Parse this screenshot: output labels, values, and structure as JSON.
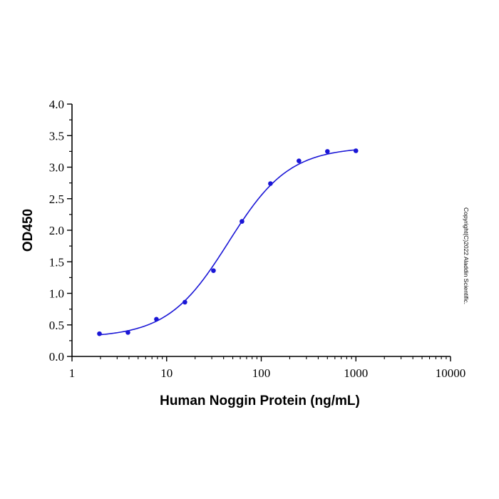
{
  "chart_data": {
    "type": "scatter",
    "x_scale": "log",
    "xlabel": "Human Noggin Protein (ng/mL)",
    "ylabel": "OD450",
    "xlim": [
      1,
      10000
    ],
    "ylim": [
      0,
      4.0
    ],
    "x_ticks": [
      "1",
      "10",
      "100",
      "1000",
      "10000"
    ],
    "y_ticks": [
      "0.0",
      "0.5",
      "1.0",
      "1.5",
      "2.0",
      "2.5",
      "3.0",
      "3.5",
      "4.0"
    ],
    "grid": false,
    "legend": "none",
    "series": [
      {
        "x": [
          1.95,
          3.9,
          7.8,
          15.6,
          31.25,
          62.5,
          125,
          250,
          500,
          1000
        ],
        "y": [
          0.36,
          0.38,
          0.59,
          0.86,
          1.36,
          2.14,
          2.74,
          3.1,
          3.25,
          3.26
        ],
        "fit_curve": {
          "x_start": 1.95,
          "x_end": 1000,
          "y_at_start": 0.36,
          "y_at_end": 3.29
        }
      }
    ],
    "colors": {
      "series": "#1a16d6",
      "axis": "#000000"
    },
    "watermark": "Copyright(C)2022 Aladdin Scientific."
  }
}
